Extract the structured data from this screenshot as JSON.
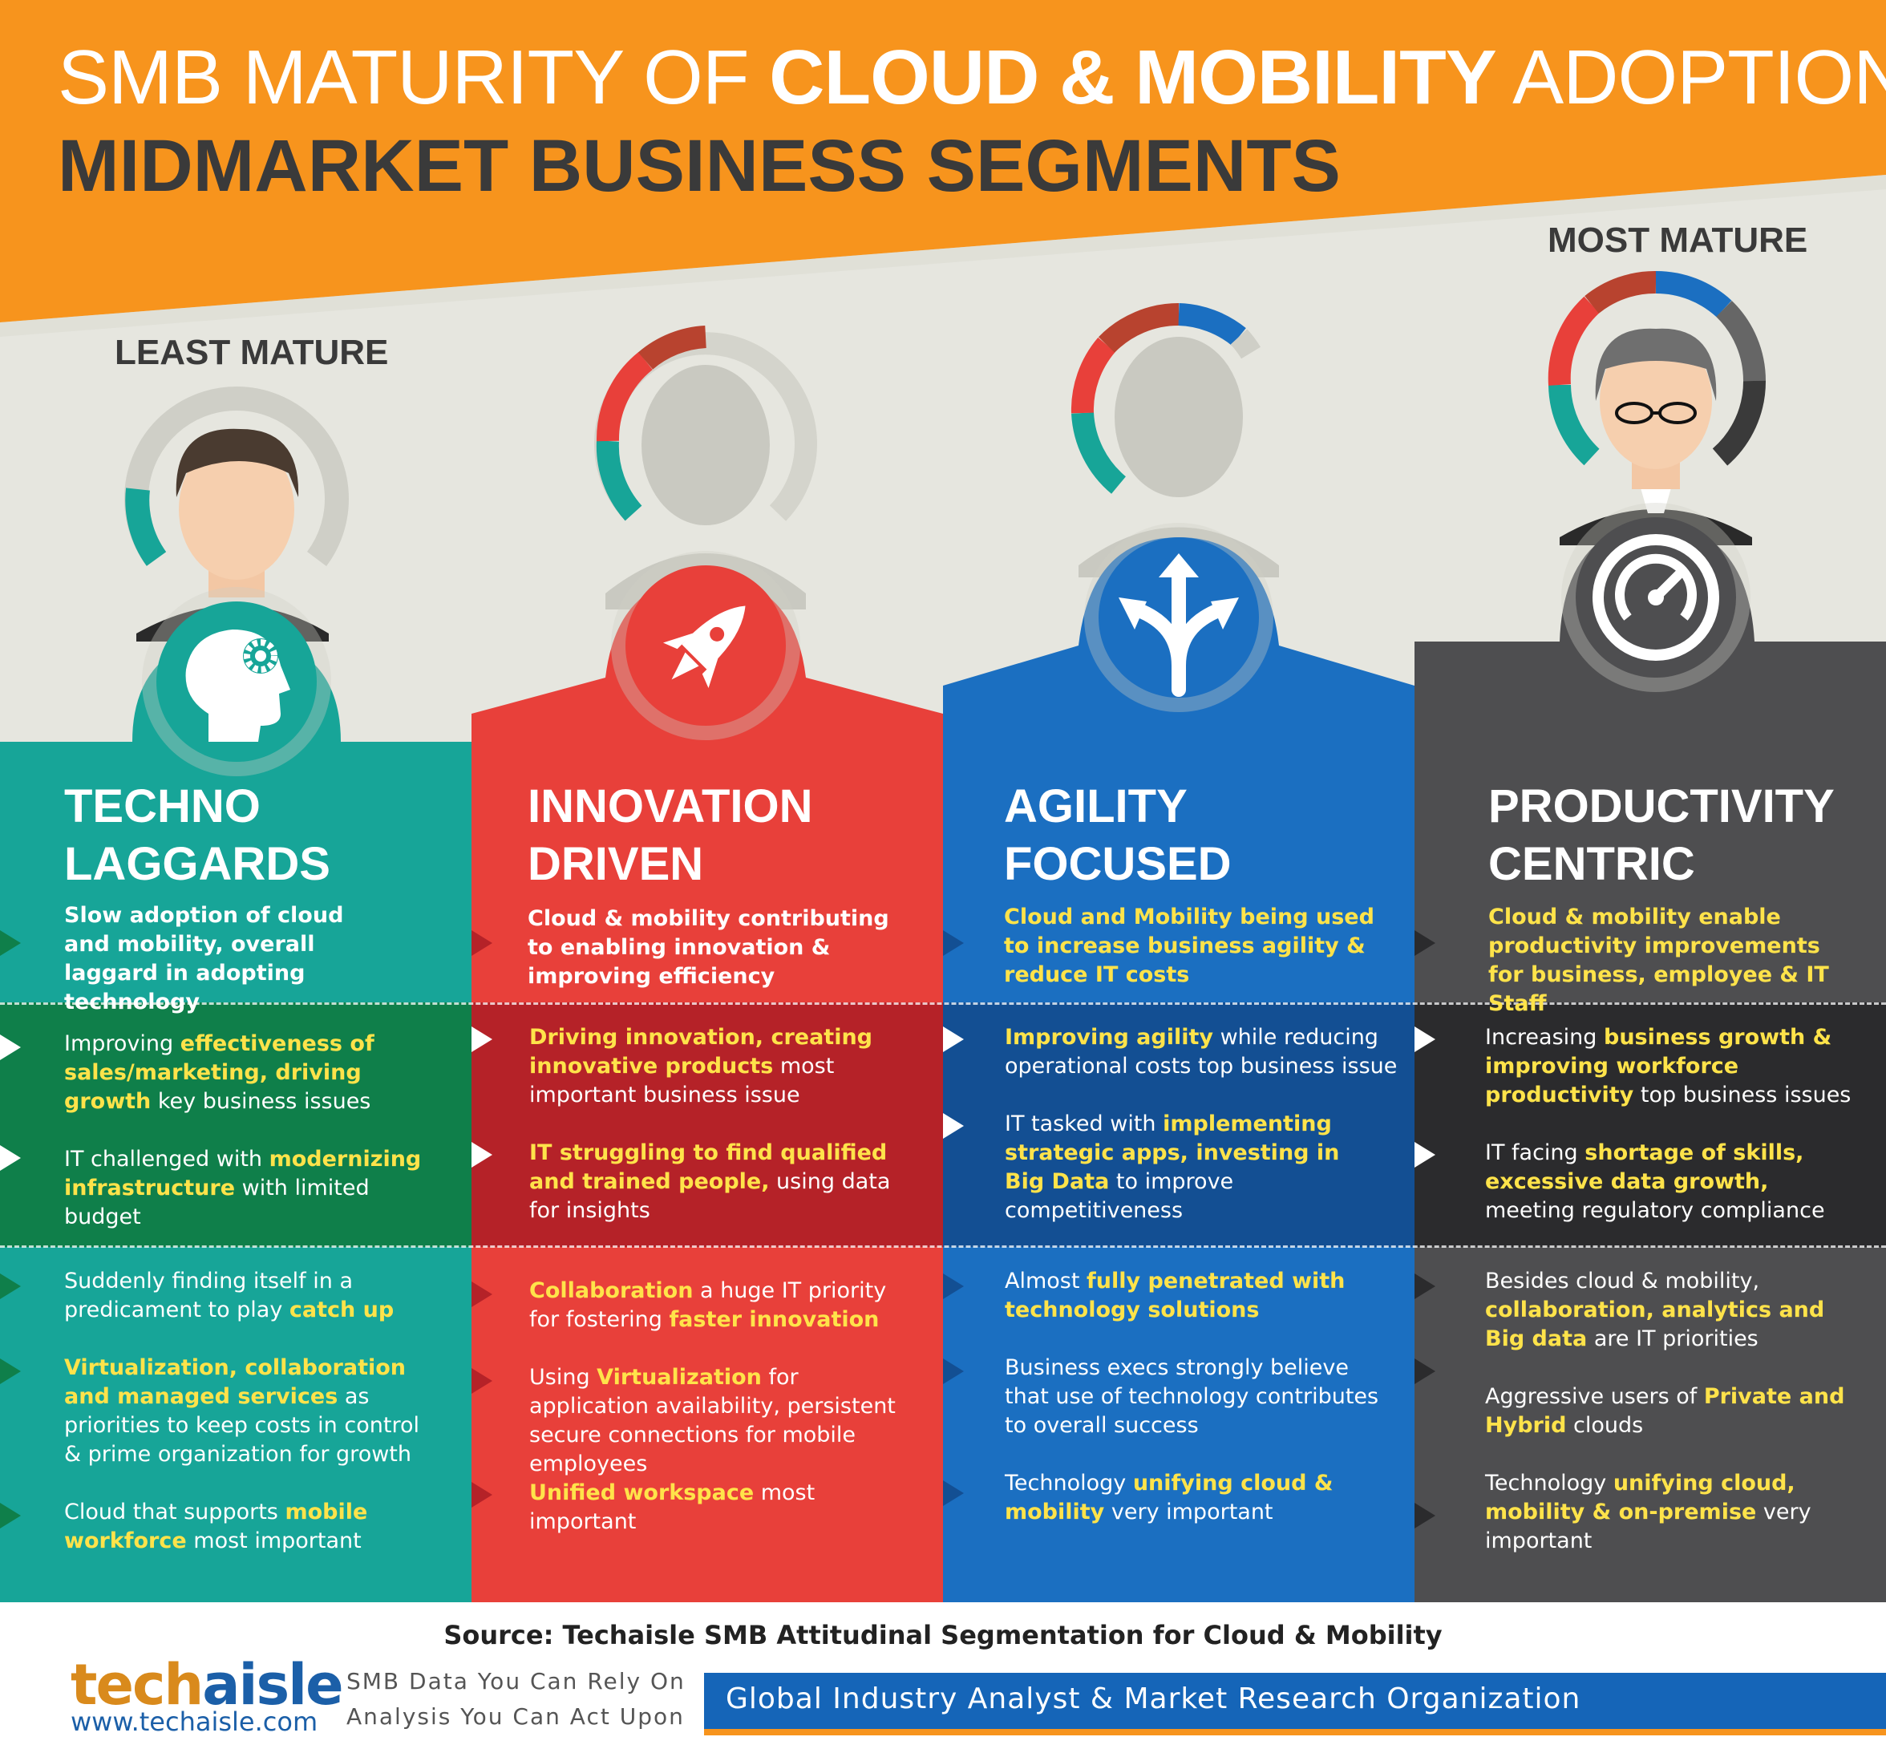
{
  "header": {
    "title_prefix": "SMB MATURITY OF",
    "title_bold": "CLOUD & MOBILITY",
    "title_suffix": "ADOPTION",
    "subtitle": "MIDMARKET BUSINESS SEGMENTS"
  },
  "labels": {
    "least": "LEAST MATURE",
    "most": "MOST MATURE"
  },
  "colors": {
    "orange": "#f7941d",
    "teal": "#17a598",
    "red": "#e8403a",
    "blue": "#1b6fc1",
    "gray": "#4e4e50",
    "highlight": "#ffe34a"
  },
  "segments": [
    {
      "name_line1": "TECHNO",
      "name_line2": "LAGGARDS",
      "icon": "head-gear-icon",
      "description": "Slow adoption of cloud and mobility, overall laggard in adopting technology",
      "business_issues": [
        {
          "t1": "Improving ",
          "h1": "effectiveness of sales/marketing, driving growth",
          "t2": " key business issues"
        },
        {
          "t1": "IT challenged with ",
          "h1": "modernizing infrastructure",
          "t2": " with limited budget"
        }
      ],
      "priorities": [
        {
          "t1": "Suddenly finding itself in a predicament to play ",
          "h1": "catch up",
          "t2": ""
        },
        {
          "t1": "",
          "h1": "Virtualization, collaboration and managed services",
          "t2": " as priorities to keep costs in control & prime organization for growth"
        },
        {
          "t1": "Cloud that supports ",
          "h1": "mobile workforce",
          "t2": " most important"
        }
      ]
    },
    {
      "name_line1": "INNOVATION",
      "name_line2": "DRIVEN",
      "icon": "rocket-icon",
      "description": "Cloud & mobility contributing to enabling innovation & improving efficiency",
      "business_issues": [
        {
          "t1": "",
          "h1": "Driving innovation, creating innovative products",
          "t2": " most important business issue"
        },
        {
          "t1": "",
          "h1": "IT struggling to find qualified and trained people,",
          "t2": " using data for insights"
        }
      ],
      "priorities": [
        {
          "t1": "",
          "h1": "Collaboration",
          "t2": " a huge IT priority for fostering ",
          "h2": "faster innovation"
        },
        {
          "t1": "Using ",
          "h1": "Virtualization",
          "t2": " for application availability, persistent secure connections for mobile employees"
        },
        {
          "t1": "",
          "h1": "Unified workspace",
          "t2": " most important"
        }
      ]
    },
    {
      "name_line1": "AGILITY",
      "name_line2": "FOCUSED",
      "icon": "split-arrows-icon",
      "description": "Cloud and Mobility being used to increase business agility & reduce IT costs",
      "business_issues": [
        {
          "t1": "",
          "h1": "Improving agility",
          "t2": " while reducing operational costs top business issue"
        },
        {
          "t1": "IT tasked with ",
          "h1": "implementing strategic apps, investing in Big Data",
          "t2": " to improve competitiveness"
        }
      ],
      "priorities": [
        {
          "t1": "Almost ",
          "h1": "fully penetrated with technology solutions",
          "t2": ""
        },
        {
          "t1": "Business execs strongly believe that use of technology contributes to overall success",
          "h1": "",
          "t2": ""
        },
        {
          "t1": "Technology ",
          "h1": "unifying cloud & mobility",
          "t2": " very important"
        }
      ]
    },
    {
      "name_line1": "PRODUCTIVITY",
      "name_line2": "CENTRIC",
      "icon": "speedometer-icon",
      "description": "Cloud & mobility enable productivity improvements for business, employee & IT Staff",
      "business_issues": [
        {
          "t1": "Increasing ",
          "h1": "business growth & improving workforce productivity",
          "t2": " top business issues"
        },
        {
          "t1": "IT facing ",
          "h1": "shortage of skills, excessive data growth,",
          "t2": " meeting regulatory compliance"
        }
      ],
      "priorities": [
        {
          "t1": "Besides cloud & mobility, ",
          "h1": "collaboration, analytics and Big data",
          "t2": " are IT priorities"
        },
        {
          "t1": "Aggressive users of ",
          "h1": "Private and Hybrid",
          "t2": " clouds"
        },
        {
          "t1": "Technology ",
          "h1": "unifying cloud, mobility & on-premise",
          "t2": " very important"
        }
      ]
    }
  ],
  "footer": {
    "source": "Source: Techaisle SMB Attitudinal Segmentation for Cloud & Mobility",
    "logo_part1": "tech",
    "logo_part2": "aisle",
    "website": "www.techaisle.com",
    "tagline1": "SMB Data You Can Rely On",
    "tagline2": "Analysis You Can Act Upon",
    "global": "Global Industry Analyst & Market Research Organization"
  }
}
